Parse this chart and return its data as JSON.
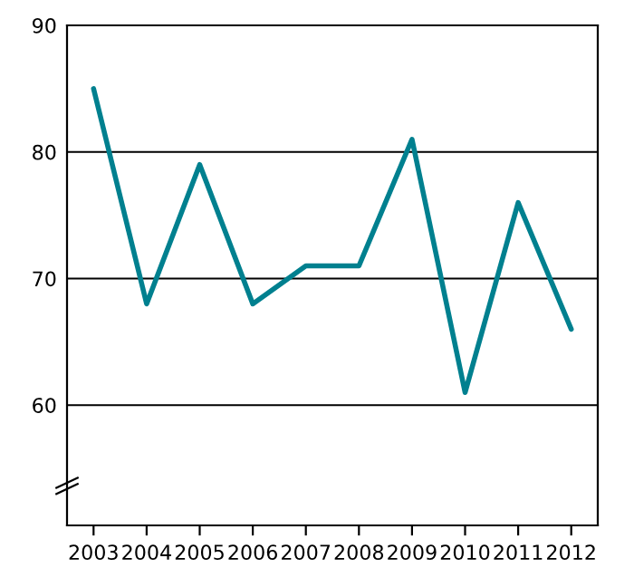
{
  "chart_data": {
    "type": "line",
    "categories": [
      "2003",
      "2004",
      "2005",
      "2006",
      "2007",
      "2008",
      "2009",
      "2010",
      "2011",
      "2012"
    ],
    "series": [
      {
        "color": "#00808f",
        "values": [
          85,
          68,
          79,
          68,
          71,
          71,
          81,
          61,
          76,
          66
        ]
      }
    ],
    "ylim": [
      50.5,
      90
    ],
    "yticks": [
      60,
      70,
      80,
      90
    ],
    "grid": "y",
    "line_style": "solid",
    "marker": "none"
  }
}
